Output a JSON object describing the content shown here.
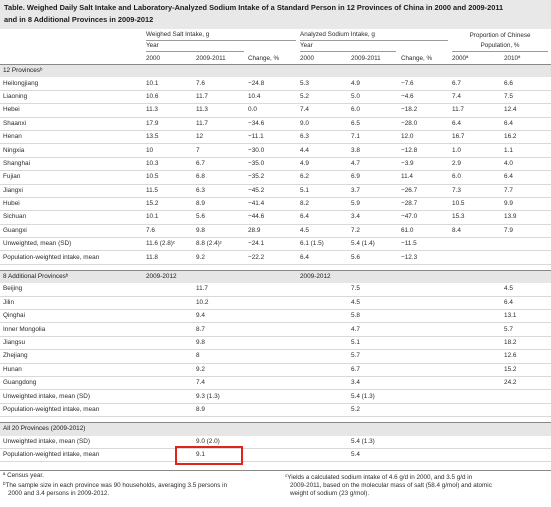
{
  "title": {
    "line1": "Table. Weighed Daily Salt Intake and Laboratory-Analyzed Sodium Intake of a Standard Person in 12 Provinces of China in 2000 and 2009-2011",
    "line2": "and in 8 Additional Provinces in 2009-2012"
  },
  "header": {
    "salt_group": "Weighed Salt Intake, g",
    "sodium_group": "Analyzed Sodium Intake, g",
    "proportion_group_1": "Proportion of Chinese",
    "proportion_group_2": "Population, %",
    "year": "Year",
    "c2000": "2000",
    "c2009": "2009-2011",
    "change": "Change, %",
    "s2000": "2000",
    "s2009": "2009-2011",
    "schange": "Change, %",
    "p2000": "2000ª",
    "p2010": "2010ª"
  },
  "sections": {
    "twelve": "12 Provincesᵇ",
    "eight": "8 Additional Provincesᵇ",
    "eight_col2": "2009-2012",
    "eight_col5": "2009-2012",
    "all": "All 20 Provinces (2009-2012)"
  },
  "rows12": [
    {
      "name": "Heilongjiang",
      "a": "10.1",
      "b": "7.6",
      "c": "−24.8",
      "d": "5.3",
      "e": "4.9",
      "f": "−7.6",
      "g": "6.7",
      "h": "6.6"
    },
    {
      "name": "Liaoning",
      "a": "10.6",
      "b": "11.7",
      "c": "10.4",
      "d": "5.2",
      "e": "5.0",
      "f": "−4.6",
      "g": "7.4",
      "h": "7.5"
    },
    {
      "name": "Hebei",
      "a": "11.3",
      "b": "11.3",
      "c": "0.0",
      "d": "7.4",
      "e": "6.0",
      "f": "−18.2",
      "g": "11.7",
      "h": "12.4"
    },
    {
      "name": "Shaanxi",
      "a": "17.9",
      "b": "11.7",
      "c": "−34.6",
      "d": "9.0",
      "e": "6.5",
      "f": "−28.0",
      "g": "6.4",
      "h": "6.4"
    },
    {
      "name": "Henan",
      "a": "13.5",
      "b": "12",
      "c": "−11.1",
      "d": "6.3",
      "e": "7.1",
      "f": "12.0",
      "g": "16.7",
      "h": "16.2"
    },
    {
      "name": "Ningxia",
      "a": "10",
      "b": "7",
      "c": "−30.0",
      "d": "4.4",
      "e": "3.8",
      "f": "−12.8",
      "g": "1.0",
      "h": "1.1"
    },
    {
      "name": "Shanghai",
      "a": "10.3",
      "b": "6.7",
      "c": "−35.0",
      "d": "4.9",
      "e": "4.7",
      "f": "−3.9",
      "g": "2.9",
      "h": "4.0"
    },
    {
      "name": "Fujian",
      "a": "10.5",
      "b": "6.8",
      "c": "−35.2",
      "d": "6.2",
      "e": "6.9",
      "f": "11.4",
      "g": "6.0",
      "h": "6.4"
    },
    {
      "name": "Jiangxi",
      "a": "11.5",
      "b": "6.3",
      "c": "−45.2",
      "d": "5.1",
      "e": "3.7",
      "f": "−26.7",
      "g": "7.3",
      "h": "7.7"
    },
    {
      "name": "Hubei",
      "a": "15.2",
      "b": "8.9",
      "c": "−41.4",
      "d": "8.2",
      "e": "5.9",
      "f": "−28.7",
      "g": "10.5",
      "h": "9.9"
    },
    {
      "name": "Sichuan",
      "a": "10.1",
      "b": "5.6",
      "c": "−44.6",
      "d": "6.4",
      "e": "3.4",
      "f": "−47.0",
      "g": "15.3",
      "h": "13.9"
    },
    {
      "name": "Guangxi",
      "a": "7.6",
      "b": "9.8",
      "c": "28.9",
      "d": "4.5",
      "e": "7.2",
      "f": "61.0",
      "g": "8.4",
      "h": "7.9"
    },
    {
      "name": "Unweighted, mean (SD)",
      "a": "11.6 (2.8)ᶜ",
      "b": "8.8 (2.4)ᶜ",
      "c": "−24.1",
      "d": "6.1 (1.5)",
      "e": "5.4 (1.4)",
      "f": "−11.5",
      "g": "",
      "h": ""
    },
    {
      "name": "Population-weighted intake, mean",
      "a": "11.8",
      "b": "9.2",
      "c": "−22.2",
      "d": "6.4",
      "e": "5.6",
      "f": "−12.3",
      "g": "",
      "h": ""
    }
  ],
  "rows8": [
    {
      "name": "Beijing",
      "b": "11.7",
      "e": "7.5",
      "h": "4.5"
    },
    {
      "name": "Jilin",
      "b": "10.2",
      "e": "4.5",
      "h": "6.4"
    },
    {
      "name": "Qinghai",
      "b": "9.4",
      "e": "5.8",
      "h": "13.1"
    },
    {
      "name": "Inner Mongolia",
      "b": "8.7",
      "e": "4.7",
      "h": "5.7"
    },
    {
      "name": "Jiangsu",
      "b": "9.8",
      "e": "5.1",
      "h": "18.2"
    },
    {
      "name": "Zhejiang",
      "b": "8",
      "e": "5.7",
      "h": "12.6"
    },
    {
      "name": "Hunan",
      "b": "9.2",
      "e": "6.7",
      "h": "15.2"
    },
    {
      "name": "Guangdong",
      "b": "7.4",
      "e": "3.4",
      "h": "24.2"
    },
    {
      "name": "Unweighted intake, mean (SD)",
      "b": "9.3 (1.3)",
      "e": "5.4 (1.3)",
      "h": ""
    },
    {
      "name": "Population-weighted intake, mean",
      "b": "8.9",
      "e": "5.2",
      "h": ""
    }
  ],
  "rows20": [
    {
      "name": "Unweighted intake, mean (SD)",
      "b": "9.0 (2.0)",
      "e": "5.4 (1.3)"
    },
    {
      "name": "Population-weighted intake, mean",
      "b": "9.1",
      "e": "5.4"
    }
  ],
  "footnotes": {
    "a": "ª Census year.",
    "b1": "The sample size in each province was 90 households, averaging 3.5 persons in",
    "b2": "2000 and 3.4 persons in 2009-2012.",
    "c1": "Yields a calculated sodium intake of 4.6 g/d in 2000, and 3.5 g/d in",
    "c2": "2009-2011, based on the molecular mass of salt (58.4 g/mol) and atomic",
    "c3": "weight of sodium (23 g/mol)."
  },
  "highlight_color": "#e0231b"
}
